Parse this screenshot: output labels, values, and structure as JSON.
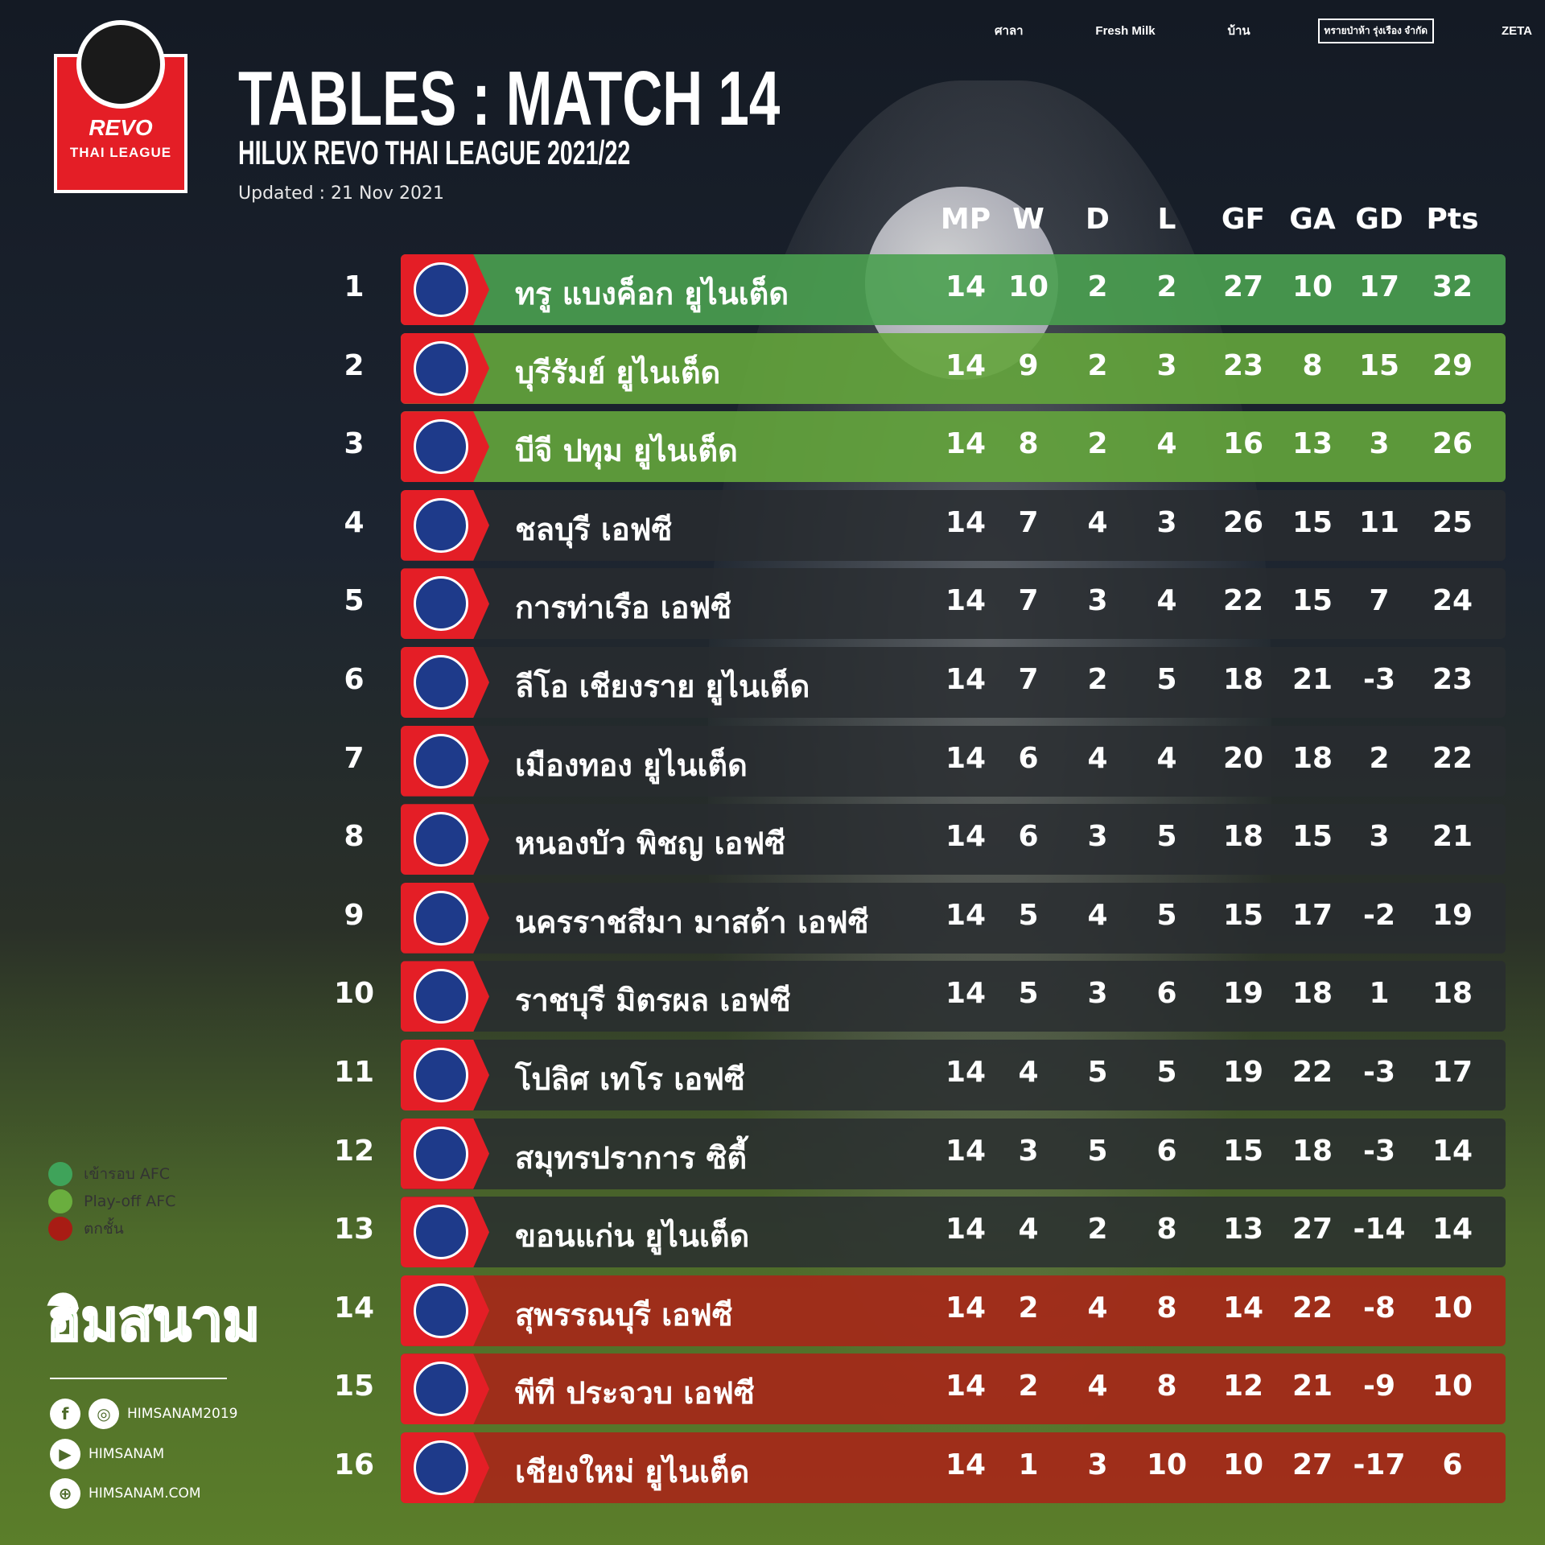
{
  "header": {
    "title": "TABLES : MATCH 14",
    "subtitle": "HILUX REVO THAI LEAGUE 2021/22",
    "updated": "Updated : 21 Nov 2021"
  },
  "league_logo": {
    "line1": "REVO",
    "line2": "THAI LEAGUE"
  },
  "sponsors": [
    "ศาลา",
    "Fresh Milk",
    "บ้าน",
    "ทรายป่าห้า รุ่งเรือง จำกัด",
    "ZETA"
  ],
  "columns": [
    "MP",
    "W",
    "D",
    "L",
    "GF",
    "GA",
    "GD",
    "Pts"
  ],
  "colors": {
    "afc": "#4aa050",
    "playoff": "#64a53c",
    "relegation": "#a52819",
    "default": "#282c30",
    "badge": "#e41e26"
  },
  "rows": [
    {
      "rank": "1",
      "team": "ทรู แบงค็อก ยูไนเต็ด",
      "zone": "afc",
      "stats": [
        "14",
        "10",
        "2",
        "2",
        "27",
        "10",
        "17",
        "32"
      ]
    },
    {
      "rank": "2",
      "team": "บุรีรัมย์ ยูไนเต็ด",
      "zone": "po",
      "stats": [
        "14",
        "9",
        "2",
        "3",
        "23",
        "8",
        "15",
        "29"
      ]
    },
    {
      "rank": "3",
      "team": "บีจี ปทุม ยูไนเต็ด",
      "zone": "po",
      "stats": [
        "14",
        "8",
        "2",
        "4",
        "16",
        "13",
        "3",
        "26"
      ]
    },
    {
      "rank": "4",
      "team": "ชลบุรี เอฟซี",
      "zone": "",
      "stats": [
        "14",
        "7",
        "4",
        "3",
        "26",
        "15",
        "11",
        "25"
      ]
    },
    {
      "rank": "5",
      "team": "การท่าเรือ เอฟซี",
      "zone": "",
      "stats": [
        "14",
        "7",
        "3",
        "4",
        "22",
        "15",
        "7",
        "24"
      ]
    },
    {
      "rank": "6",
      "team": "ลีโอ เชียงราย ยูไนเต็ด",
      "zone": "",
      "stats": [
        "14",
        "7",
        "2",
        "5",
        "18",
        "21",
        "-3",
        "23"
      ]
    },
    {
      "rank": "7",
      "team": "เมืองทอง ยูไนเต็ด",
      "zone": "",
      "stats": [
        "14",
        "6",
        "4",
        "4",
        "20",
        "18",
        "2",
        "22"
      ]
    },
    {
      "rank": "8",
      "team": "หนองบัว พิชญ เอฟซี",
      "zone": "",
      "stats": [
        "14",
        "6",
        "3",
        "5",
        "18",
        "15",
        "3",
        "21"
      ]
    },
    {
      "rank": "9",
      "team": "นครราชสีมา มาสด้า เอฟซี",
      "zone": "",
      "stats": [
        "14",
        "5",
        "4",
        "5",
        "15",
        "17",
        "-2",
        "19"
      ]
    },
    {
      "rank": "10",
      "team": "ราชบุรี มิตรผล เอฟซี",
      "zone": "",
      "stats": [
        "14",
        "5",
        "3",
        "6",
        "19",
        "18",
        "1",
        "18"
      ]
    },
    {
      "rank": "11",
      "team": "โปลิศ เทโร เอฟซี",
      "zone": "",
      "stats": [
        "14",
        "4",
        "5",
        "5",
        "19",
        "22",
        "-3",
        "17"
      ]
    },
    {
      "rank": "12",
      "team": "สมุทรปราการ ซิตี้",
      "zone": "",
      "stats": [
        "14",
        "3",
        "5",
        "6",
        "15",
        "18",
        "-3",
        "14"
      ]
    },
    {
      "rank": "13",
      "team": "ขอนแก่น ยูไนเต็ด",
      "zone": "",
      "stats": [
        "14",
        "4",
        "2",
        "8",
        "13",
        "27",
        "-14",
        "14"
      ]
    },
    {
      "rank": "14",
      "team": "สุพรรณบุรี เอฟซี",
      "zone": "rel",
      "stats": [
        "14",
        "2",
        "4",
        "8",
        "14",
        "22",
        "-8",
        "10"
      ]
    },
    {
      "rank": "15",
      "team": "พีที ประจวบ เอฟซี",
      "zone": "rel",
      "stats": [
        "14",
        "2",
        "4",
        "8",
        "12",
        "21",
        "-9",
        "10"
      ]
    },
    {
      "rank": "16",
      "team": "เชียงใหม่ ยูไนเต็ด",
      "zone": "rel",
      "stats": [
        "14",
        "1",
        "3",
        "10",
        "10",
        "27",
        "-17",
        "6"
      ]
    }
  ],
  "legend": [
    {
      "label": "เข้ารอบ AFC",
      "color": "#3fa35a"
    },
    {
      "label": "Play-off AFC",
      "color": "#6aae3e"
    },
    {
      "label": "ตกชั้น",
      "color": "#a81c14"
    }
  ],
  "brand": "ฮิมสนาม",
  "social": [
    {
      "icons": [
        "facebook-icon",
        "instagram-icon"
      ],
      "label": "HIMSANAM2019"
    },
    {
      "icons": [
        "youtube-icon"
      ],
      "label": "HIMSANAM"
    },
    {
      "icons": [
        "globe-icon"
      ],
      "label": "HIMSANAM.COM"
    }
  ]
}
